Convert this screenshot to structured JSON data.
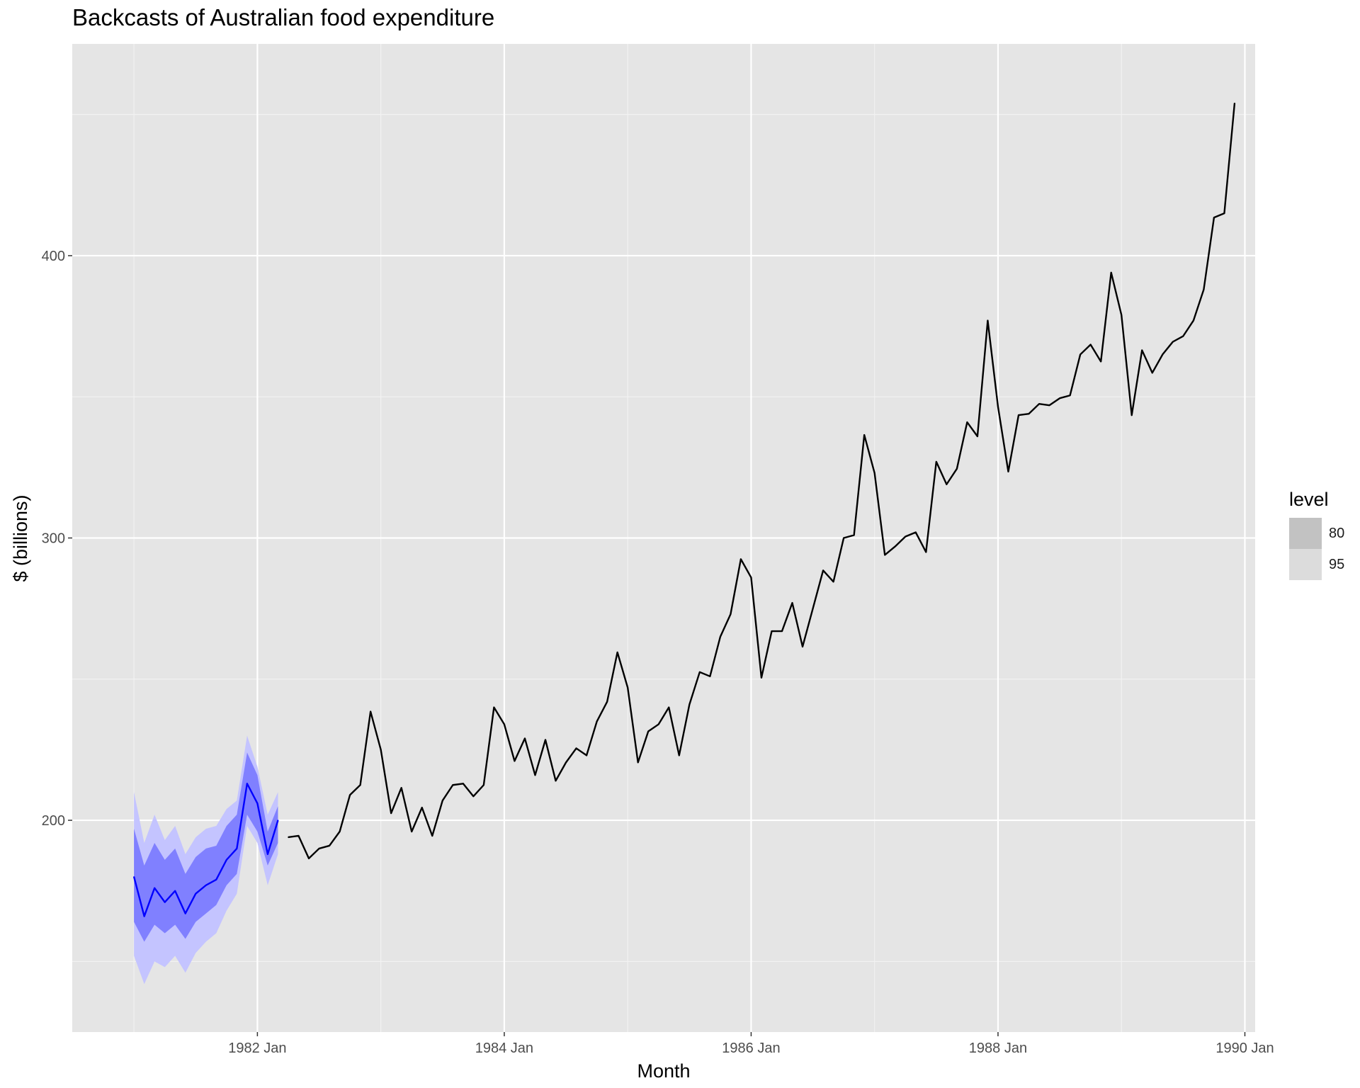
{
  "chart_data": {
    "type": "line",
    "title": "Backcasts of Australian food expenditure",
    "xlabel": "Month",
    "ylabel": "$ (billions)",
    "x_ticks": [
      "1982 Jan",
      "1984 Jan",
      "1986 Jan",
      "1988 Jan",
      "1990 Jan"
    ],
    "y_ticks": [
      200,
      300,
      400
    ],
    "ylim": [
      125,
      475
    ],
    "xlim": [
      "1980 Jul",
      "1990 Feb"
    ],
    "grid": true,
    "legend": {
      "title": "level",
      "placement": "right",
      "entries": [
        {
          "label": "80",
          "color": "#c2c2c2"
        },
        {
          "label": "95",
          "color": "#dcdcdc"
        }
      ]
    },
    "series": [
      {
        "kind": "observed",
        "color": "#000000",
        "x_start": "1982 Apr",
        "values": [
          194,
          194.5,
          186.5,
          190,
          191,
          196,
          209,
          212.5,
          238.5,
          225,
          202.5,
          211.5,
          196,
          204.5,
          194.5,
          207,
          212.5,
          213,
          208.5,
          212.5,
          240,
          234,
          221,
          229,
          216,
          228.5,
          214,
          220.5,
          225.5,
          223,
          235,
          242,
          259.5,
          247,
          220.5,
          231.5,
          234,
          240,
          223,
          241,
          252.5,
          251,
          265,
          273,
          292.5,
          286,
          250.5,
          267,
          267,
          277,
          261.5,
          275,
          288.5,
          284.5,
          300,
          301,
          336.5,
          323,
          294,
          297,
          300.5,
          302,
          295,
          327,
          319,
          324.5,
          341,
          336,
          377,
          346.5,
          323.5,
          343.5,
          344,
          347.5,
          347,
          349.5,
          350.5,
          365,
          368.5,
          362.5,
          394,
          379,
          343.5,
          366.5,
          358.5,
          365,
          369.5,
          371.5,
          377,
          388,
          413.5,
          415,
          454
        ]
      },
      {
        "kind": "backcast",
        "color": "#0000ff",
        "x_start": "1981 Jan",
        "values": [
          180,
          166,
          176,
          171,
          175,
          167,
          174,
          177,
          179,
          186,
          190,
          213,
          206,
          188,
          200
        ],
        "interval_80": {
          "lower": [
            164,
            157,
            163,
            160,
            163,
            158,
            164,
            167,
            170,
            177,
            181,
            202,
            196,
            184,
            192
          ],
          "upper": [
            197,
            184,
            192,
            186,
            190,
            181,
            187,
            190,
            191,
            198,
            202,
            224,
            216,
            196,
            205
          ],
          "color": "#8080ff"
        },
        "interval_95": {
          "lower": [
            152,
            142,
            150,
            148,
            152,
            146,
            153,
            157,
            160,
            168,
            174,
            198,
            192,
            177,
            188
          ],
          "upper": [
            210,
            192,
            202,
            193,
            198,
            188,
            194,
            197,
            198,
            204,
            207,
            230,
            219,
            202,
            210
          ],
          "color": "#c4c4ff"
        }
      }
    ]
  }
}
